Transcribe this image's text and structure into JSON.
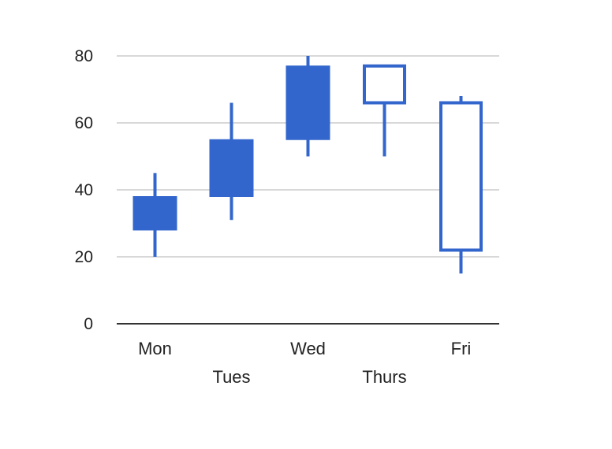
{
  "chart_data": {
    "type": "candlestick",
    "title": "",
    "xlabel": "",
    "ylabel": "",
    "categories": [
      "Mon",
      "Tues",
      "Wed",
      "Thurs",
      "Fri"
    ],
    "candles": [
      {
        "label": "Mon",
        "low": 20,
        "open": 28,
        "close": 38,
        "high": 45
      },
      {
        "label": "Tues",
        "low": 31,
        "open": 38,
        "close": 55,
        "high": 66
      },
      {
        "label": "Wed",
        "low": 50,
        "open": 55,
        "close": 77,
        "high": 80
      },
      {
        "label": "Thurs",
        "low": 50,
        "open": 77,
        "close": 66,
        "high": 77
      },
      {
        "label": "Fri",
        "low": 15,
        "open": 66,
        "close": 22,
        "high": 68
      }
    ],
    "ylim": [
      0,
      80
    ],
    "yticks": [
      0,
      20,
      40,
      60,
      80
    ],
    "grid": true,
    "legend": "none",
    "colors": {
      "series": "#3366cc",
      "grid": "#cccccc",
      "baseline": "#333333",
      "text": "#222222"
    }
  }
}
